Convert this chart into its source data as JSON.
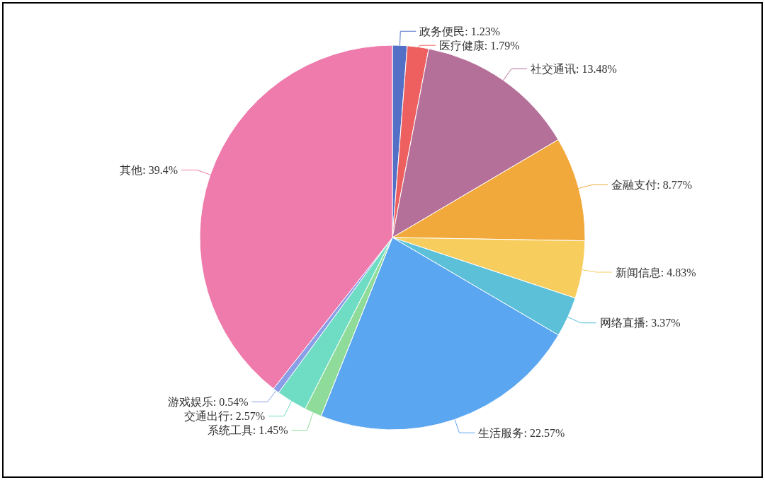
{
  "chart_data": {
    "type": "pie",
    "categories": [
      "政务便民",
      "医疗健康",
      "社交通讯",
      "金融支付",
      "新闻信息",
      "网络直播",
      "生活服务",
      "系统工具",
      "交通出行",
      "游戏娱乐",
      "其他"
    ],
    "values": [
      1.23,
      1.79,
      13.48,
      8.77,
      4.83,
      3.37,
      22.57,
      1.45,
      2.57,
      0.54,
      39.4
    ],
    "value_labels": [
      ": 1.23%",
      ": 1.79%",
      ": 13.48%",
      ": 8.77%",
      ": 4.83%",
      ": 3.37%",
      ": 22.57%",
      ": 1.45%",
      ": 2.57%",
      ": 0.54%",
      ": 39.4%"
    ],
    "colors": [
      "#5470c6",
      "#ee6060",
      "#b5709a",
      "#f2a93b",
      "#f7cd5e",
      "#5bc0d8",
      "#5aa6f0",
      "#8fdc9a",
      "#6fdcc4",
      "#8a9ee8",
      "#ee7bab"
    ]
  }
}
